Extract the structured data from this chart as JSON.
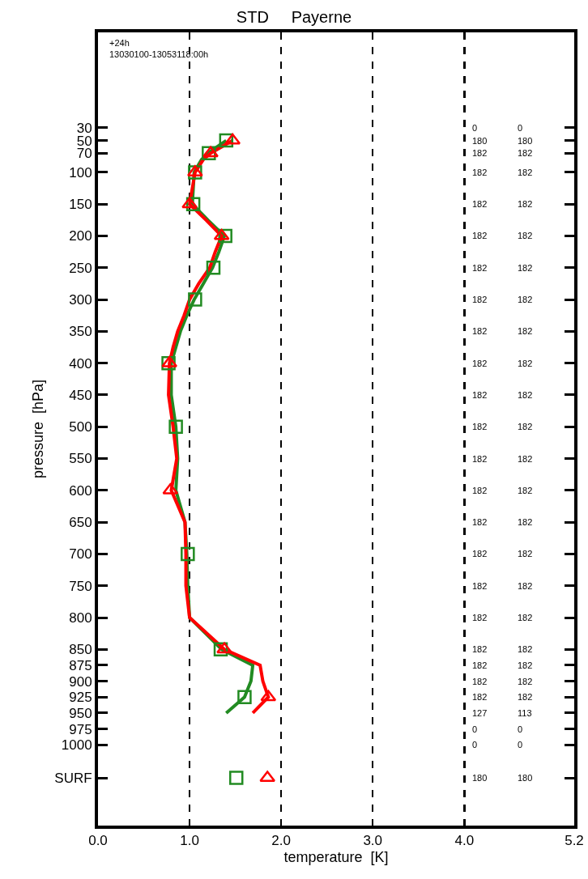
{
  "chart_data": {
    "type": "line",
    "title": "STD     Payerne",
    "xlabel": "temperature  [K]",
    "ylabel": "pressure  [hPa]",
    "xlim": [
      0,
      5.2
    ],
    "xticks": [
      {
        "value": 0,
        "label": "0.0"
      },
      {
        "value": 1,
        "label": "1.0"
      },
      {
        "value": 2,
        "label": "2.0"
      },
      {
        "value": 3,
        "label": "3.0"
      },
      {
        "value": 4,
        "label": "4.0"
      },
      {
        "value": 5.2,
        "label": "5.2"
      }
    ],
    "ylim": [
      1127,
      -120
    ],
    "yticks": [
      30,
      50,
      70,
      100,
      150,
      200,
      250,
      300,
      350,
      400,
      450,
      500,
      550,
      600,
      650,
      700,
      750,
      800,
      850,
      875,
      900,
      925,
      950,
      975,
      1000,
      {
        "value": 1052,
        "label": "SURF"
      }
    ],
    "grid": "x",
    "line_style": "solid",
    "series": [
      {
        "color": "#228b22",
        "marker": "none",
        "x": [
          1.4,
          1.3,
          1.2,
          1.13,
          1.05,
          1.04,
          1.03,
          1.2,
          1.38,
          1.32,
          1.25,
          1.15,
          1.05,
          0.97,
          0.9,
          0.85,
          0.8,
          0.8,
          0.85,
          0.87,
          0.85,
          0.95,
          0.97,
          0.98,
          1.0,
          1.35,
          1.69,
          1.67,
          1.6,
          1.4
        ],
        "values": [
          50,
          60,
          70,
          80,
          100,
          125,
          150,
          175,
          200,
          225,
          250,
          275,
          300,
          325,
          350,
          375,
          400,
          450,
          500,
          550,
          600,
          650,
          700,
          750,
          800,
          850,
          875,
          900,
          925,
          950
        ]
      },
      {
        "color": "#ff0000",
        "marker": "none",
        "x": [
          1.47,
          1.35,
          1.23,
          1.15,
          1.06,
          1.03,
          1.0,
          1.18,
          1.35,
          1.28,
          1.22,
          1.1,
          1.0,
          0.94,
          0.87,
          0.82,
          0.78,
          0.77,
          0.82,
          0.86,
          0.8,
          0.95,
          0.96,
          0.96,
          1.0,
          1.38,
          1.77,
          1.8,
          1.86,
          1.69
        ],
        "values": [
          50,
          60,
          70,
          80,
          100,
          125,
          150,
          175,
          200,
          225,
          250,
          275,
          300,
          325,
          350,
          375,
          400,
          450,
          500,
          550,
          600,
          650,
          700,
          750,
          800,
          850,
          875,
          900,
          925,
          950
        ]
      },
      {
        "type": "scatter",
        "color": "#228b22",
        "marker": "square",
        "x": [
          1.4,
          1.21,
          1.06,
          1.04,
          1.39,
          1.26,
          1.06,
          0.77,
          0.85,
          0.98,
          1.34,
          1.6,
          1.51
        ],
        "values": [
          50,
          70,
          100,
          150,
          200,
          250,
          300,
          400,
          500,
          700,
          850,
          925,
          1052
        ]
      },
      {
        "type": "scatter",
        "color": "#ff0000",
        "marker": "triangle",
        "x": [
          1.47,
          1.23,
          1.06,
          1.0,
          1.35,
          0.78,
          0.79,
          1.38,
          1.86,
          1.85
        ],
        "values": [
          50,
          70,
          100,
          150,
          200,
          400,
          600,
          850,
          925,
          1052
        ]
      }
    ],
    "annotations": [
      "+24h",
      "13030100-13053118:00h",
      "0",
      "0",
      "180",
      "180",
      "182",
      "182",
      "182",
      "182",
      "182",
      "182",
      "182",
      "182",
      "182",
      "182",
      "182",
      "182",
      "182",
      "182",
      "182",
      "182",
      "182",
      "182",
      "182",
      "182",
      "182",
      "182",
      "182",
      "182",
      "182",
      "182",
      "182",
      "182",
      "182",
      "182",
      "182",
      "182",
      "182",
      "182",
      "182",
      "182",
      "182",
      "182",
      "182",
      "182",
      "127",
      "113",
      "0",
      "0",
      "0",
      "0",
      "180",
      "180"
    ]
  }
}
